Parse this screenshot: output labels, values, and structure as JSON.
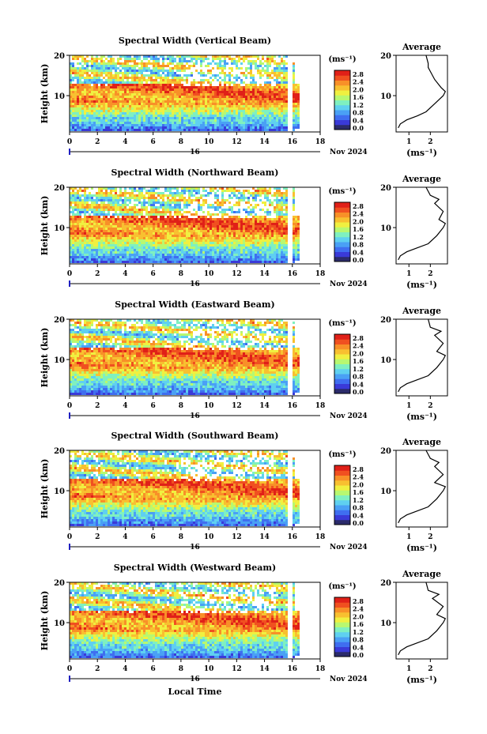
{
  "colorbar": {
    "unit": "(ms⁻¹)",
    "ticks": [
      "0.0",
      "0.4",
      "0.8",
      "1.2",
      "1.6",
      "2.0",
      "2.4",
      "2.8"
    ],
    "colors": [
      "#2b2b6b",
      "#3a3ad8",
      "#3f6ef0",
      "#4aa0f5",
      "#5fd0f0",
      "#7ff0c0",
      "#b8f870",
      "#f0f040",
      "#f8c030",
      "#f89028",
      "#f05020",
      "#e02018"
    ]
  },
  "x_axis": {
    "ticks": [
      "0",
      "2",
      "4",
      "6",
      "8",
      "10",
      "12",
      "14",
      "16",
      "18"
    ],
    "day_label": "16",
    "month_label": "Nov 2024",
    "xlabel": "Local Time"
  },
  "y_axis": {
    "label": "Height (km)",
    "ticks": [
      "10",
      "20"
    ]
  },
  "average_title": "Average",
  "average_xlabel": "(ms⁻¹)",
  "average_xticks": [
    "1",
    "2"
  ],
  "chart_data": [
    {
      "type": "heatmap",
      "title": "Spectral Width (Vertical Beam)",
      "x_range": [
        0,
        18
      ],
      "y_range": [
        1,
        20
      ],
      "xlabel": "Local Time",
      "ylabel": "Height (km)",
      "colorbar_range": [
        0,
        3.0
      ],
      "average_profile": {
        "title": "Average",
        "xlim": [
          0.4,
          2.8
        ],
        "ylim": [
          1,
          20
        ],
        "x": [
          0.5,
          0.6,
          0.9,
          1.4,
          1.8,
          2.2,
          2.6,
          2.7,
          2.5,
          2.2,
          2.0,
          1.9,
          1.9,
          1.8
        ],
        "y": [
          2,
          3,
          4,
          5,
          6,
          8,
          10,
          11,
          12,
          14,
          16,
          17,
          18,
          20
        ]
      }
    },
    {
      "type": "heatmap",
      "title": "Spectral Width (Northward Beam)",
      "x_range": [
        0,
        18
      ],
      "y_range": [
        1,
        20
      ],
      "xlabel": "Local Time",
      "ylabel": "Height (km)",
      "colorbar_range": [
        0,
        3.0
      ],
      "average_profile": {
        "title": "Average",
        "xlim": [
          0.4,
          2.8
        ],
        "ylim": [
          1,
          20
        ],
        "x": [
          0.5,
          0.6,
          0.9,
          1.4,
          1.9,
          2.3,
          2.6,
          2.7,
          2.4,
          2.6,
          2.2,
          2.4,
          2.0,
          1.8
        ],
        "y": [
          2,
          3,
          4,
          5,
          6,
          8,
          10,
          11,
          12,
          14,
          16,
          17,
          18,
          20
        ]
      }
    },
    {
      "type": "heatmap",
      "title": "Spectral Width (Eastward Beam)",
      "x_range": [
        0,
        18
      ],
      "y_range": [
        1,
        20
      ],
      "xlabel": "Local Time",
      "ylabel": "Height (km)",
      "colorbar_range": [
        0,
        3.0
      ],
      "average_profile": {
        "title": "Average",
        "xlim": [
          0.4,
          2.8
        ],
        "ylim": [
          1,
          20
        ],
        "x": [
          0.5,
          0.6,
          0.9,
          1.4,
          1.9,
          2.3,
          2.6,
          2.7,
          2.3,
          2.6,
          2.2,
          2.5,
          2.0,
          1.9
        ],
        "y": [
          2,
          3,
          4,
          5,
          6,
          8,
          10,
          11,
          12,
          14,
          16,
          17,
          18,
          20
        ]
      }
    },
    {
      "type": "heatmap",
      "title": "Spectral Width (Southward Beam)",
      "x_range": [
        0,
        18
      ],
      "y_range": [
        1,
        20
      ],
      "xlabel": "Local Time",
      "ylabel": "Height (km)",
      "colorbar_range": [
        0,
        3.0
      ],
      "average_profile": {
        "title": "Average",
        "xlim": [
          0.4,
          2.8
        ],
        "ylim": [
          1,
          20
        ],
        "x": [
          0.5,
          0.6,
          0.9,
          1.4,
          1.9,
          2.3,
          2.6,
          2.7,
          2.2,
          2.6,
          2.2,
          2.4,
          2.0,
          1.8
        ],
        "y": [
          2,
          3,
          4,
          5,
          6,
          8,
          10,
          11,
          12,
          14,
          16,
          17,
          18,
          20
        ]
      }
    },
    {
      "type": "heatmap",
      "title": "Spectral Width (Westward Beam)",
      "x_range": [
        0,
        18
      ],
      "y_range": [
        1,
        20
      ],
      "xlabel": "Local Time",
      "ylabel": "Height (km)",
      "colorbar_range": [
        0,
        3.0
      ],
      "average_profile": {
        "title": "Average",
        "xlim": [
          0.4,
          2.8
        ],
        "ylim": [
          1,
          20
        ],
        "x": [
          0.5,
          0.6,
          0.9,
          1.4,
          1.9,
          2.3,
          2.6,
          2.7,
          2.3,
          2.6,
          2.1,
          2.4,
          1.9,
          1.8
        ],
        "y": [
          2,
          3,
          4,
          5,
          6,
          8,
          10,
          11,
          12,
          14,
          16,
          17,
          18,
          20
        ]
      }
    }
  ]
}
